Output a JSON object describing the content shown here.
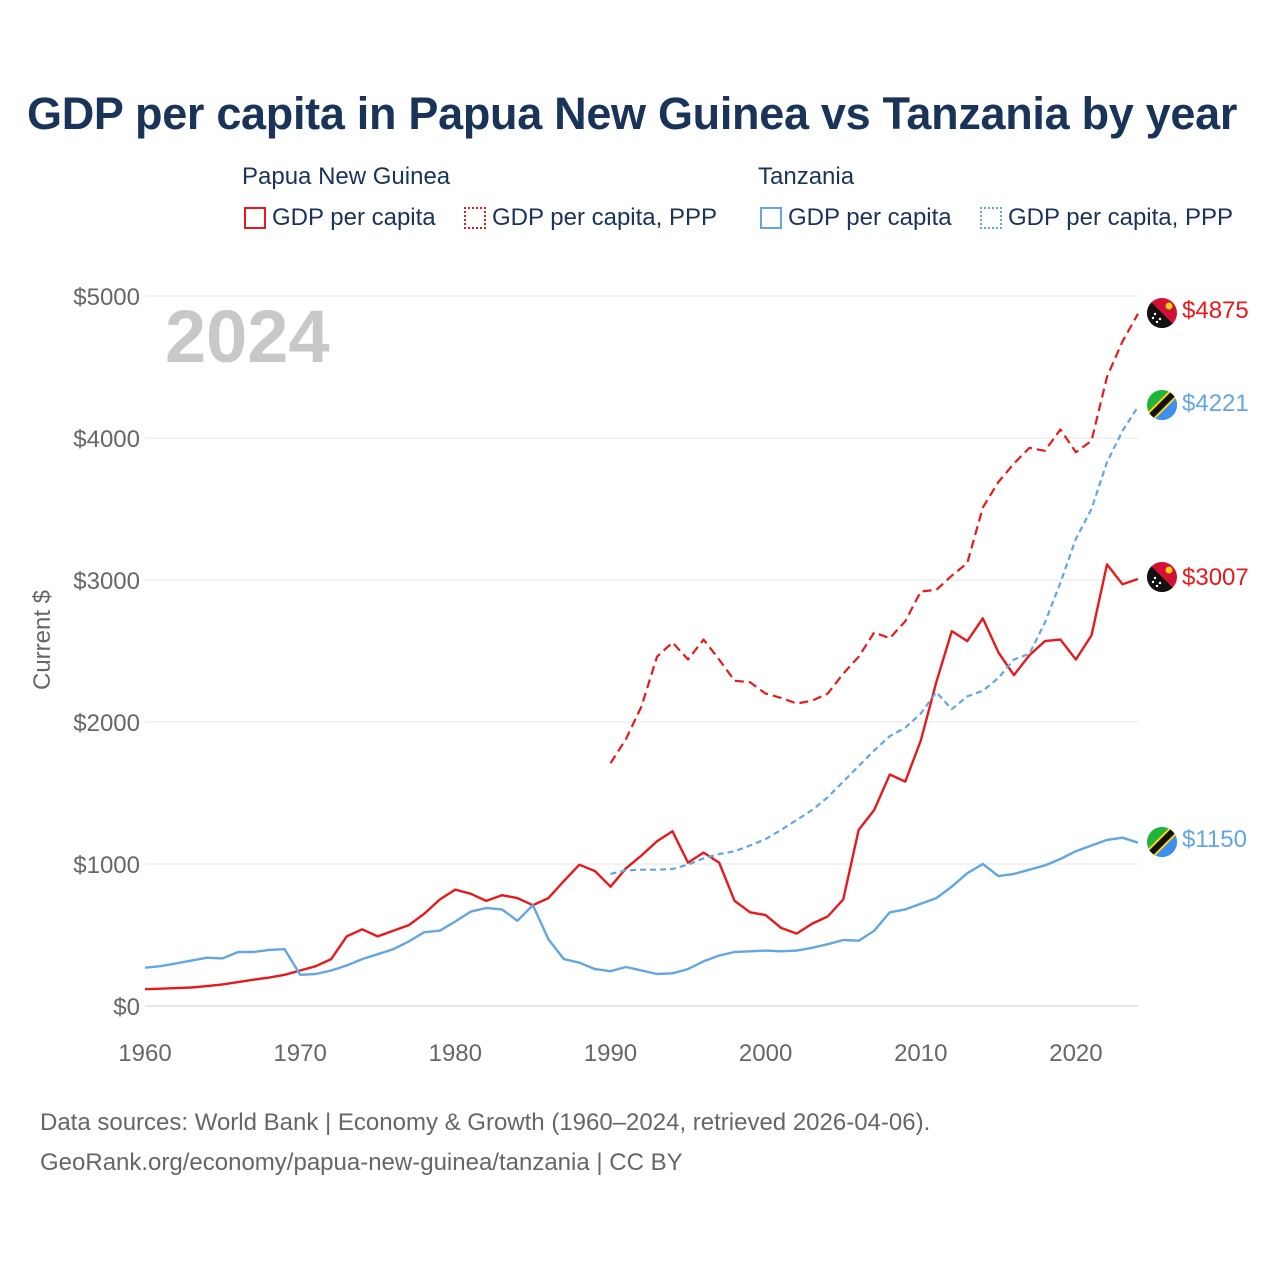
{
  "title": "GDP per capita in Papua New Guinea vs Tanzania by year",
  "legend": {
    "groups": [
      {
        "country": "Papua New Guinea",
        "items": [
          "GDP per capita",
          "GDP per capita, PPP"
        ]
      },
      {
        "country": "Tanzania",
        "items": [
          "GDP per capita",
          "GDP per capita, PPP"
        ]
      }
    ]
  },
  "colors": {
    "png": "#e8191c",
    "tza": "#62a6e3",
    "grid": "#e5e5e5",
    "tick": "#666666",
    "year_watermark": "#c8c8c8"
  },
  "footer": {
    "line1": "Data sources: World Bank | Economy & Growth (1960–2024, retrieved 2026-04-06).",
    "line2": "GeoRank.org/economy/papua-new-guinea/tanzania | CC BY"
  },
  "chart_data": {
    "type": "line",
    "year_label": "2024",
    "ylabel": "Current $",
    "xlim": [
      1960,
      2024
    ],
    "ylim": [
      0,
      5000
    ],
    "x_ticks": [
      1960,
      1970,
      1980,
      1990,
      2000,
      2010,
      2020
    ],
    "y_ticks": [
      0,
      1000,
      2000,
      3000,
      4000,
      5000
    ],
    "y_tick_labels": [
      "$0",
      "$1000",
      "$2000",
      "$3000",
      "$4000",
      "$5000"
    ],
    "series": [
      {
        "name": "Papua New Guinea GDP per capita",
        "country": "Papua New Guinea",
        "style": "solid",
        "color": "#e8191c",
        "end_label": "$3007",
        "end_value": 3007,
        "x": [
          1960,
          1961,
          1962,
          1963,
          1964,
          1965,
          1966,
          1967,
          1968,
          1969,
          1970,
          1971,
          1972,
          1973,
          1974,
          1975,
          1976,
          1977,
          1978,
          1979,
          1980,
          1981,
          1982,
          1983,
          1984,
          1985,
          1986,
          1987,
          1988,
          1989,
          1990,
          1991,
          1992,
          1993,
          1994,
          1995,
          1996,
          1997,
          1998,
          1999,
          2000,
          2001,
          2002,
          2003,
          2004,
          2005,
          2006,
          2007,
          2008,
          2009,
          2010,
          2011,
          2012,
          2013,
          2014,
          2015,
          2016,
          2017,
          2018,
          2019,
          2020,
          2021,
          2022,
          2023,
          2024
        ],
        "y": [
          118,
          122,
          126,
          130,
          140,
          152,
          168,
          185,
          200,
          220,
          250,
          280,
          330,
          490,
          540,
          490,
          530,
          570,
          650,
          750,
          820,
          790,
          740,
          780,
          760,
          710,
          760,
          880,
          995,
          950,
          840,
          970,
          1060,
          1160,
          1230,
          1010,
          1080,
          1010,
          740,
          660,
          640,
          550,
          510,
          580,
          630,
          750,
          1240,
          1380,
          1630,
          1580,
          1870,
          2280,
          2640,
          2570,
          2730,
          2490,
          2330,
          2470,
          2570,
          2580,
          2440,
          2610,
          3110,
          2970,
          3007
        ]
      },
      {
        "name": "Papua New Guinea GDP per capita, PPP",
        "country": "Papua New Guinea",
        "style": "dashed",
        "color": "#e8191c",
        "end_label": "$4875",
        "end_value": 4875,
        "x": [
          1990,
          1991,
          1992,
          1993,
          1994,
          1995,
          1996,
          1997,
          1998,
          1999,
          2000,
          2001,
          2002,
          2003,
          2004,
          2005,
          2006,
          2007,
          2008,
          2009,
          2010,
          2011,
          2012,
          2013,
          2014,
          2015,
          2016,
          2017,
          2018,
          2019,
          2020,
          2021,
          2022,
          2023,
          2024
        ],
        "y": [
          1710,
          1880,
          2110,
          2460,
          2560,
          2440,
          2580,
          2440,
          2290,
          2280,
          2200,
          2170,
          2130,
          2150,
          2200,
          2340,
          2460,
          2630,
          2590,
          2710,
          2920,
          2930,
          3030,
          3120,
          3510,
          3690,
          3820,
          3930,
          3910,
          4060,
          3900,
          3980,
          4430,
          4680,
          4875
        ]
      },
      {
        "name": "Tanzania GDP per capita",
        "country": "Tanzania",
        "style": "solid",
        "color": "#62a6e3",
        "end_label": "$1150",
        "end_value": 1150,
        "x": [
          1960,
          1961,
          1962,
          1963,
          1964,
          1965,
          1966,
          1967,
          1968,
          1969,
          1970,
          1971,
          1972,
          1973,
          1974,
          1975,
          1976,
          1977,
          1978,
          1979,
          1980,
          1981,
          1982,
          1983,
          1984,
          1985,
          1986,
          1987,
          1988,
          1989,
          1990,
          1991,
          1992,
          1993,
          1994,
          1995,
          1996,
          1997,
          1998,
          1999,
          2000,
          2001,
          2002,
          2003,
          2004,
          2005,
          2006,
          2007,
          2008,
          2009,
          2010,
          2011,
          2012,
          2013,
          2014,
          2015,
          2016,
          2017,
          2018,
          2019,
          2020,
          2021,
          2022,
          2023,
          2024
        ],
        "y": [
          270,
          280,
          300,
          320,
          340,
          335,
          380,
          380,
          395,
          400,
          220,
          225,
          250,
          285,
          330,
          365,
          400,
          455,
          520,
          530,
          595,
          665,
          690,
          680,
          600,
          710,
          470,
          330,
          305,
          260,
          245,
          275,
          250,
          225,
          230,
          260,
          315,
          355,
          380,
          385,
          390,
          385,
          390,
          410,
          435,
          465,
          460,
          530,
          660,
          680,
          720,
          760,
          840,
          935,
          1000,
          915,
          930,
          960,
          990,
          1035,
          1090,
          1130,
          1170,
          1185,
          1150
        ]
      },
      {
        "name": "Tanzania GDP per capita, PPP",
        "country": "Tanzania",
        "style": "dashed",
        "color": "#62a6e3",
        "end_label": "$4221",
        "end_value": 4221,
        "x": [
          1990,
          1991,
          1992,
          1993,
          1994,
          1995,
          1996,
          1997,
          1998,
          1999,
          2000,
          2001,
          2002,
          2003,
          2004,
          2005,
          2006,
          2007,
          2008,
          2009,
          2010,
          2011,
          2012,
          2013,
          2014,
          2015,
          2016,
          2017,
          2018,
          2019,
          2020,
          2021,
          2022,
          2023,
          2024
        ],
        "y": [
          930,
          955,
          960,
          960,
          965,
          995,
          1040,
          1070,
          1090,
          1130,
          1175,
          1240,
          1310,
          1380,
          1470,
          1580,
          1690,
          1800,
          1900,
          1960,
          2060,
          2210,
          2090,
          2180,
          2220,
          2310,
          2440,
          2480,
          2700,
          2980,
          3290,
          3500,
          3830,
          4050,
          4221
        ]
      }
    ]
  }
}
